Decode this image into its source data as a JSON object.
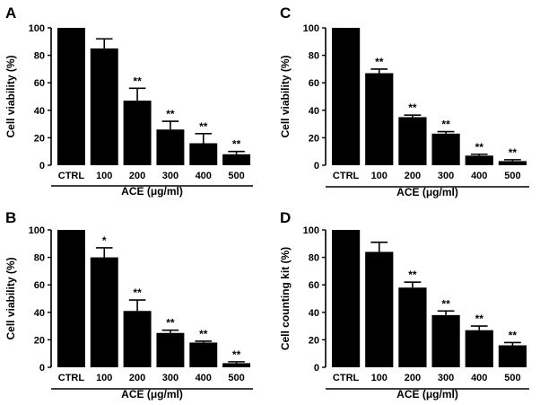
{
  "chart_data": [
    {
      "panel": "A",
      "type": "bar",
      "categories": [
        "CTRL",
        "100",
        "200",
        "300",
        "400",
        "500"
      ],
      "values": [
        100,
        85,
        47,
        26,
        16,
        8
      ],
      "errors": [
        0,
        7,
        9,
        6,
        7,
        2
      ],
      "significance": [
        "",
        "",
        "**",
        "**",
        "**",
        "**"
      ],
      "ylabel": "Cell viability (%)",
      "xlabel": "ACE (μg/ml)",
      "yticks": [
        "0",
        "20",
        "40",
        "60",
        "80",
        "100"
      ],
      "ylim": [
        0,
        100
      ],
      "color": "#000000"
    },
    {
      "panel": "C",
      "type": "bar",
      "categories": [
        "CTRL",
        "100",
        "200",
        "300",
        "400",
        "500"
      ],
      "values": [
        100,
        67,
        35,
        23,
        7,
        3
      ],
      "errors": [
        0,
        3,
        1.5,
        1.5,
        1,
        1
      ],
      "significance": [
        "",
        "**",
        "**",
        "**",
        "**",
        "**"
      ],
      "ylabel": "Cell viability (%)",
      "xlabel": "ACE (μg/ml)",
      "yticks": [
        "0",
        "20",
        "40",
        "60",
        "80",
        "100"
      ],
      "ylim": [
        0,
        100
      ],
      "color": "#000000"
    },
    {
      "panel": "B",
      "type": "bar",
      "categories": [
        "CTRL",
        "100",
        "200",
        "300",
        "400",
        "500"
      ],
      "values": [
        100,
        80,
        41,
        25,
        18,
        3
      ],
      "errors": [
        0,
        7,
        8,
        2,
        1,
        1
      ],
      "significance": [
        "",
        "*",
        "**",
        "**",
        "**",
        "**"
      ],
      "ylabel": "Cell viability (%)",
      "xlabel": "ACE (μg/ml)",
      "yticks": [
        "0",
        "20",
        "40",
        "60",
        "80",
        "100"
      ],
      "ylim": [
        0,
        100
      ],
      "color": "#000000"
    },
    {
      "panel": "D",
      "type": "bar",
      "categories": [
        "CTRL",
        "100",
        "200",
        "300",
        "400",
        "500"
      ],
      "values": [
        100,
        84,
        58,
        38,
        27,
        16
      ],
      "errors": [
        0,
        7,
        4,
        3,
        3,
        2
      ],
      "significance": [
        "",
        "",
        "**",
        "**",
        "**",
        "**"
      ],
      "ylabel": "Cell counting kit (%)",
      "xlabel": "ACE (μg/ml)",
      "yticks": [
        "0",
        "20",
        "40",
        "60",
        "80",
        "100"
      ],
      "ylim": [
        0,
        100
      ],
      "color": "#000000"
    }
  ]
}
